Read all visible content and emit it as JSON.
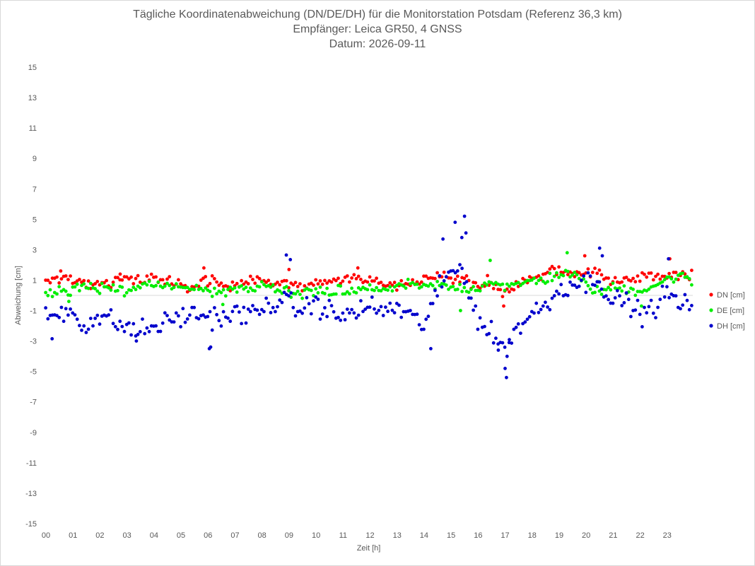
{
  "chart_data": {
    "type": "scatter",
    "title_lines": [
      "Tägliche Koordinatenabweichung (DN/DE/DH) für die Monitorstation Potsdam (Referenz 36,3 km)",
      "Empfänger: Leica GR50, 4 GNSS",
      "Datum: 2026-09-11"
    ],
    "xlabel": "Zeit [h]",
    "ylabel": "Abweichung [cm]",
    "xlim": [
      0,
      24
    ],
    "ylim": [
      -15,
      15
    ],
    "y_ticks": [
      15,
      13,
      11,
      9,
      7,
      5,
      3,
      1,
      -1,
      -3,
      -5,
      -7,
      -9,
      -11,
      -13,
      -15
    ],
    "x_ticks": [
      "00",
      "01",
      "02",
      "03",
      "04",
      "05",
      "06",
      "07",
      "08",
      "09",
      "10",
      "11",
      "12",
      "13",
      "14",
      "15",
      "16",
      "17",
      "18",
      "19",
      "20",
      "21",
      "22",
      "23"
    ],
    "grid": false,
    "legend_position": "right",
    "series": [
      {
        "name": "DN [cm]",
        "color": "#ff0000",
        "anchors": [
          [
            0,
            0.8
          ],
          [
            0.5,
            1.2
          ],
          [
            1,
            1.0
          ],
          [
            1.5,
            0.8
          ],
          [
            2,
            0.7
          ],
          [
            2.5,
            0.9
          ],
          [
            3,
            1.2
          ],
          [
            3.5,
            1.0
          ],
          [
            4,
            1.1
          ],
          [
            4.5,
            0.9
          ],
          [
            5,
            0.8
          ],
          [
            5.3,
            0.3
          ],
          [
            5.6,
            0.7
          ],
          [
            6,
            1.0
          ],
          [
            6.5,
            0.7
          ],
          [
            7,
            0.6
          ],
          [
            7.5,
            0.9
          ],
          [
            8,
            1.0
          ],
          [
            8.5,
            0.9
          ],
          [
            9,
            0.8
          ],
          [
            9.5,
            0.7
          ],
          [
            10,
            0.8
          ],
          [
            10.5,
            0.9
          ],
          [
            11,
            1.0
          ],
          [
            11.5,
            1.0
          ],
          [
            12,
            1.0
          ],
          [
            12.5,
            0.9
          ],
          [
            13,
            0.7
          ],
          [
            13.5,
            0.8
          ],
          [
            14,
            1.0
          ],
          [
            14.5,
            1.3
          ],
          [
            15,
            1.2
          ],
          [
            15.5,
            1.0
          ],
          [
            16,
            0.8
          ],
          [
            16.5,
            0.6
          ],
          [
            17,
            0.2
          ],
          [
            17.5,
            0.6
          ],
          [
            18,
            1.0
          ],
          [
            18.5,
            1.5
          ],
          [
            19,
            1.6
          ],
          [
            19.5,
            1.5
          ],
          [
            20,
            1.4
          ],
          [
            20.5,
            1.6
          ],
          [
            21,
            0.8
          ],
          [
            21.5,
            1.0
          ],
          [
            22,
            1.2
          ],
          [
            22.5,
            1.3
          ],
          [
            23,
            1.2
          ],
          [
            23.5,
            1.4
          ],
          [
            24,
            1.3
          ]
        ],
        "spread": 0.25,
        "spikes": [
          [
            0.6,
            1.6
          ],
          [
            2.8,
            1.4
          ],
          [
            5.9,
            1.8
          ],
          [
            9.05,
            1.7
          ],
          [
            11.6,
            1.8
          ],
          [
            16.4,
            1.3
          ],
          [
            17.0,
            -0.7
          ],
          [
            20.0,
            2.6
          ],
          [
            23.15,
            2.4
          ]
        ]
      },
      {
        "name": "DE [cm]",
        "color": "#00ee00",
        "anchors": [
          [
            0,
            0.2
          ],
          [
            0.5,
            0.3
          ],
          [
            1,
            0.4
          ],
          [
            1.5,
            0.6
          ],
          [
            2,
            0.5
          ],
          [
            2.5,
            0.4
          ],
          [
            3,
            0.3
          ],
          [
            3.5,
            0.5
          ],
          [
            4,
            0.6
          ],
          [
            4.5,
            0.6
          ],
          [
            5,
            0.5
          ],
          [
            5.5,
            0.4
          ],
          [
            6,
            0.4
          ],
          [
            6.5,
            0.1
          ],
          [
            7,
            0.4
          ],
          [
            7.5,
            0.5
          ],
          [
            8,
            0.6
          ],
          [
            8.5,
            0.5
          ],
          [
            9,
            0.3
          ],
          [
            9.5,
            0.1
          ],
          [
            10,
            0.3
          ],
          [
            10.5,
            0.3
          ],
          [
            11,
            0.4
          ],
          [
            11.5,
            0.3
          ],
          [
            12,
            0.5
          ],
          [
            12.5,
            0.3
          ],
          [
            13,
            0.6
          ],
          [
            13.5,
            0.7
          ],
          [
            14,
            0.5
          ],
          [
            14.5,
            0.7
          ],
          [
            15,
            0.5
          ],
          [
            15.5,
            0.5
          ],
          [
            16,
            0.4
          ],
          [
            16.5,
            1.0
          ],
          [
            17,
            0.6
          ],
          [
            17.5,
            0.6
          ],
          [
            18,
            1.0
          ],
          [
            18.5,
            1.0
          ],
          [
            19,
            1.4
          ],
          [
            19.5,
            1.4
          ],
          [
            20,
            0.8
          ],
          [
            20.5,
            0.2
          ],
          [
            21,
            0.5
          ],
          [
            21.5,
            0.4
          ],
          [
            22,
            0.3
          ],
          [
            22.5,
            0.6
          ],
          [
            23,
            1.0
          ],
          [
            23.5,
            1.3
          ],
          [
            24,
            0.9
          ]
        ],
        "spread": 0.25,
        "spikes": [
          [
            0.9,
            -0.4
          ],
          [
            6.6,
            -0.6
          ],
          [
            15.4,
            -1.0
          ],
          [
            16.5,
            2.3
          ],
          [
            19.35,
            2.8
          ],
          [
            20.5,
            0.9
          ],
          [
            22.1,
            -0.7
          ]
        ]
      },
      {
        "name": "DH [cm]",
        "color": "#0000cc",
        "anchors": [
          [
            0,
            -1.5
          ],
          [
            0.5,
            -1.2
          ],
          [
            1,
            -1.0
          ],
          [
            1.5,
            -2.0
          ],
          [
            2,
            -1.4
          ],
          [
            2.5,
            -1.7
          ],
          [
            3,
            -2.1
          ],
          [
            3.5,
            -2.4
          ],
          [
            4,
            -2.1
          ],
          [
            4.5,
            -1.8
          ],
          [
            5,
            -1.4
          ],
          [
            5.5,
            -1.3
          ],
          [
            6,
            -1.3
          ],
          [
            6.5,
            -1.5
          ],
          [
            7,
            -1.2
          ],
          [
            7.5,
            -1.3
          ],
          [
            8,
            -1.0
          ],
          [
            8.5,
            -0.4
          ],
          [
            9,
            -0.5
          ],
          [
            9.5,
            -1.0
          ],
          [
            10,
            -0.5
          ],
          [
            10.5,
            -1.0
          ],
          [
            11,
            -1.5
          ],
          [
            11.5,
            -1.0
          ],
          [
            12,
            -0.8
          ],
          [
            12.5,
            -1.0
          ],
          [
            13,
            -0.8
          ],
          [
            13.5,
            -1.3
          ],
          [
            14,
            -2.0
          ],
          [
            14.5,
            0.0
          ],
          [
            15,
            1.5
          ],
          [
            15.5,
            1.8
          ],
          [
            16,
            -1.5
          ],
          [
            16.5,
            -2.5
          ],
          [
            17,
            -3.5
          ],
          [
            17.5,
            -2.2
          ],
          [
            18,
            -1.2
          ],
          [
            18.5,
            -0.8
          ],
          [
            19,
            0.3
          ],
          [
            19.5,
            0.8
          ],
          [
            20,
            0.8
          ],
          [
            20.5,
            1.3
          ],
          [
            21,
            -0.5
          ],
          [
            21.5,
            -0.3
          ],
          [
            22,
            -1.2
          ],
          [
            22.5,
            -1.0
          ],
          [
            23,
            0.2
          ],
          [
            23.5,
            -0.6
          ],
          [
            24,
            -0.5
          ]
        ],
        "spread": 0.55,
        "spikes": [
          [
            0.28,
            -2.85
          ],
          [
            3.4,
            -3.0
          ],
          [
            6.1,
            -3.5
          ],
          [
            6.15,
            -3.4
          ],
          [
            8.95,
            2.65
          ],
          [
            9.1,
            2.35
          ],
          [
            14.75,
            3.7
          ],
          [
            15.2,
            4.8
          ],
          [
            15.45,
            3.8
          ],
          [
            15.55,
            5.2
          ],
          [
            15.6,
            4.1
          ],
          [
            16.8,
            -3.6
          ],
          [
            17.05,
            -4.8
          ],
          [
            17.1,
            -5.4
          ],
          [
            17.2,
            -3.1
          ],
          [
            20.55,
            3.1
          ],
          [
            20.65,
            2.6
          ],
          [
            23.1,
            2.4
          ],
          [
            14.3,
            -3.5
          ]
        ]
      }
    ]
  }
}
